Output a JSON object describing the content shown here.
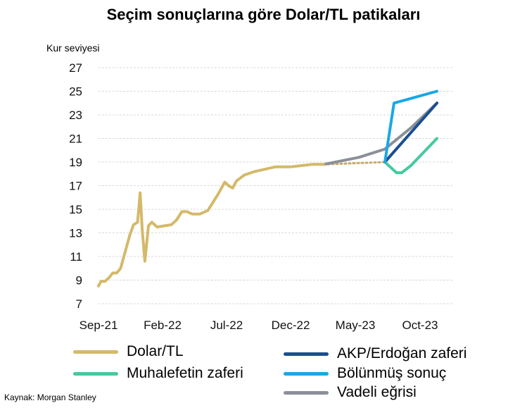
{
  "chart_data": {
    "type": "line",
    "title": "Seçim sonuçlarına göre Dolar/TL patikaları",
    "ylabel": "Kur seviyesi",
    "xlabel": "",
    "ylim": [
      7,
      27
    ],
    "yticks": [
      7,
      9,
      11,
      13,
      15,
      17,
      19,
      21,
      23,
      25,
      27
    ],
    "xticks": [
      "Sep-21",
      "Feb-22",
      "Jul-22",
      "Dec-22",
      "May-23",
      "Oct-23"
    ],
    "grid": true,
    "series": [
      {
        "name": "Dolar/TL",
        "color": "#d4b96a",
        "points": [
          [
            0.0,
            8.5
          ],
          [
            0.1,
            8.9
          ],
          [
            0.25,
            8.9
          ],
          [
            0.4,
            9.2
          ],
          [
            0.55,
            9.6
          ],
          [
            0.7,
            9.6
          ],
          [
            0.85,
            10.0
          ],
          [
            1.0,
            11.2
          ],
          [
            1.2,
            12.8
          ],
          [
            1.35,
            13.7
          ],
          [
            1.5,
            13.9
          ],
          [
            1.6,
            16.4
          ],
          [
            1.68,
            13.2
          ],
          [
            1.78,
            10.6
          ],
          [
            1.92,
            13.6
          ],
          [
            2.05,
            13.9
          ],
          [
            2.25,
            13.5
          ],
          [
            2.55,
            13.6
          ],
          [
            2.8,
            13.7
          ],
          [
            3.0,
            14.1
          ],
          [
            3.2,
            14.8
          ],
          [
            3.4,
            14.8
          ],
          [
            3.6,
            14.6
          ],
          [
            3.9,
            14.6
          ],
          [
            4.2,
            14.9
          ],
          [
            4.4,
            15.6
          ],
          [
            4.6,
            16.3
          ],
          [
            4.85,
            17.3
          ],
          [
            5.0,
            17.0
          ],
          [
            5.15,
            16.8
          ],
          [
            5.3,
            17.4
          ],
          [
            5.6,
            17.9
          ],
          [
            6.0,
            18.2
          ],
          [
            6.4,
            18.4
          ],
          [
            6.8,
            18.6
          ],
          [
            7.0,
            18.6
          ],
          [
            7.4,
            18.6
          ],
          [
            7.8,
            18.7
          ],
          [
            8.2,
            18.8
          ],
          [
            8.5,
            18.8
          ],
          [
            8.65,
            18.8
          ]
        ]
      },
      {
        "name": "AKP/Erdoğan zaferi",
        "color": "#1a4f8f",
        "points": [
          [
            11.0,
            19.0
          ],
          [
            13.0,
            24.0
          ]
        ]
      },
      {
        "name": "Muhalefetin zaferi",
        "color": "#45c9a0",
        "points": [
          [
            11.0,
            19.0
          ],
          [
            11.45,
            18.1
          ],
          [
            11.65,
            18.1
          ],
          [
            12.0,
            18.7
          ],
          [
            13.0,
            21.0
          ]
        ]
      },
      {
        "name": "Bölünmüş sonuç",
        "color": "#1aa7e6",
        "points": [
          [
            11.0,
            19.0
          ],
          [
            11.35,
            24.0
          ],
          [
            13.0,
            25.0
          ]
        ]
      },
      {
        "name": "Vadeli eğrisi",
        "color": "#8a8f99",
        "points": [
          [
            8.65,
            18.8
          ],
          [
            10.0,
            19.4
          ],
          [
            11.0,
            20.1
          ],
          [
            12.0,
            21.9
          ],
          [
            13.0,
            24.0
          ]
        ]
      }
    ],
    "bridge": {
      "style": "dotted",
      "color": "#c9a86a",
      "points": [
        [
          8.65,
          18.8
        ],
        [
          11.0,
          19.0
        ]
      ]
    },
    "x_tick_positions_months": [
      0,
      5,
      10,
      15,
      20,
      25
    ],
    "x_month_to_tick": 0.4
  },
  "legend": {
    "items": [
      {
        "label": "Dolar/TL",
        "color": "#d4b96a"
      },
      {
        "label": "Muhalefetin zaferi",
        "color": "#45c9a0"
      },
      {
        "label": "AKP/Erdoğan zaferi",
        "color": "#1a4f8f"
      },
      {
        "label": "Bölünmüş sonuç",
        "color": "#1aa7e6"
      },
      {
        "label": "Vadeli eğrisi",
        "color": "#8a8f99"
      }
    ]
  },
  "source": "Kaynak: Morgan Stanley"
}
